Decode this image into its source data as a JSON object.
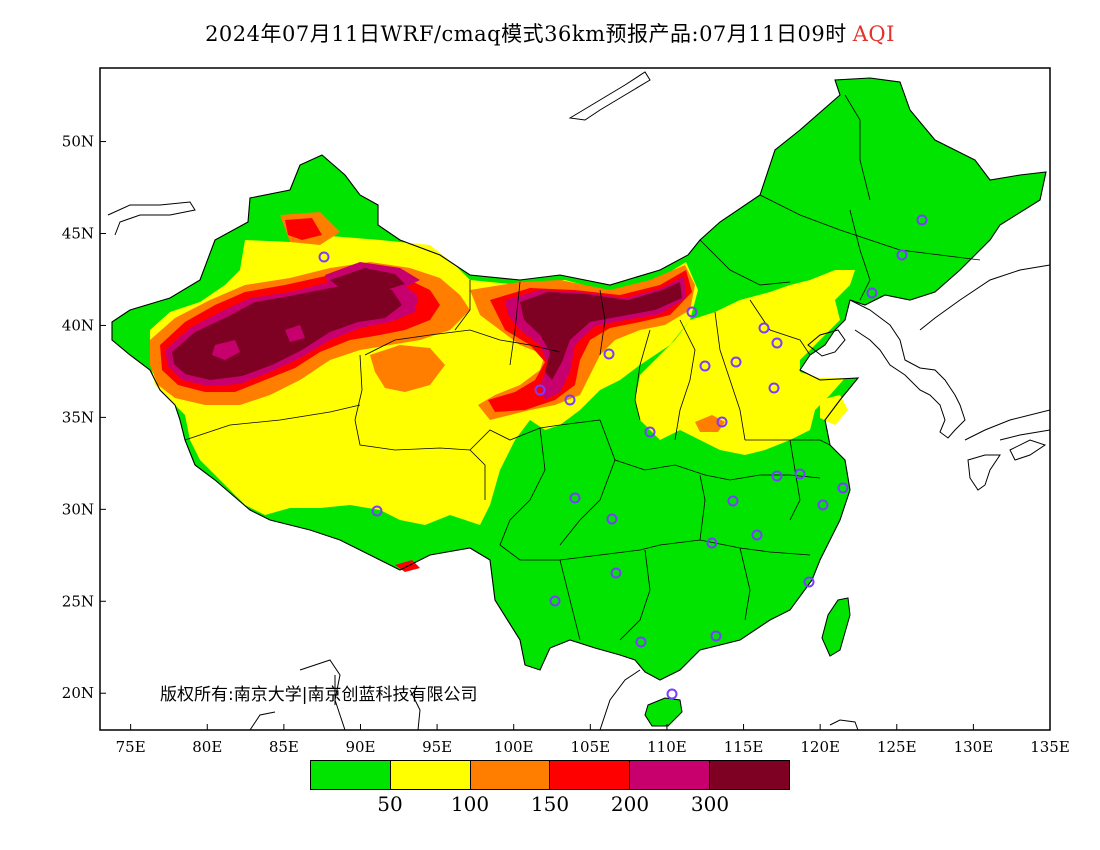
{
  "title": {
    "text": "2024年07月11日WRF/cmaq模式36km预报产品:07月11日09时",
    "variable": "AQI"
  },
  "copyright": "版权所有:南京大学|南京创蓝科技有限公司",
  "map": {
    "lon_range": [
      73,
      135
    ],
    "lat_range": [
      18,
      54
    ],
    "lon_ticks": [
      {
        "value": 75,
        "label": "75E"
      },
      {
        "value": 80,
        "label": "80E"
      },
      {
        "value": 85,
        "label": "85E"
      },
      {
        "value": 90,
        "label": "90E"
      },
      {
        "value": 95,
        "label": "95E"
      },
      {
        "value": 100,
        "label": "100E"
      },
      {
        "value": 105,
        "label": "105E"
      },
      {
        "value": 110,
        "label": "110E"
      },
      {
        "value": 115,
        "label": "115E"
      },
      {
        "value": 120,
        "label": "120E"
      },
      {
        "value": 125,
        "label": "125E"
      },
      {
        "value": 130,
        "label": "130E"
      },
      {
        "value": 135,
        "label": "135E"
      }
    ],
    "lat_ticks": [
      {
        "value": 20,
        "label": "20N"
      },
      {
        "value": 25,
        "label": "25N"
      },
      {
        "value": 30,
        "label": "30N"
      },
      {
        "value": 35,
        "label": "35N"
      },
      {
        "value": 40,
        "label": "40N"
      },
      {
        "value": 45,
        "label": "45N"
      },
      {
        "value": 50,
        "label": "50N"
      }
    ]
  },
  "legend": {
    "colors": [
      "#00e400",
      "#ffff00",
      "#ff7e00",
      "#ff0000",
      "#c8006e",
      "#7e0023"
    ],
    "labels": [
      "50",
      "100",
      "150",
      "200",
      "300"
    ]
  },
  "city_marker_color": "#7a3cff"
}
